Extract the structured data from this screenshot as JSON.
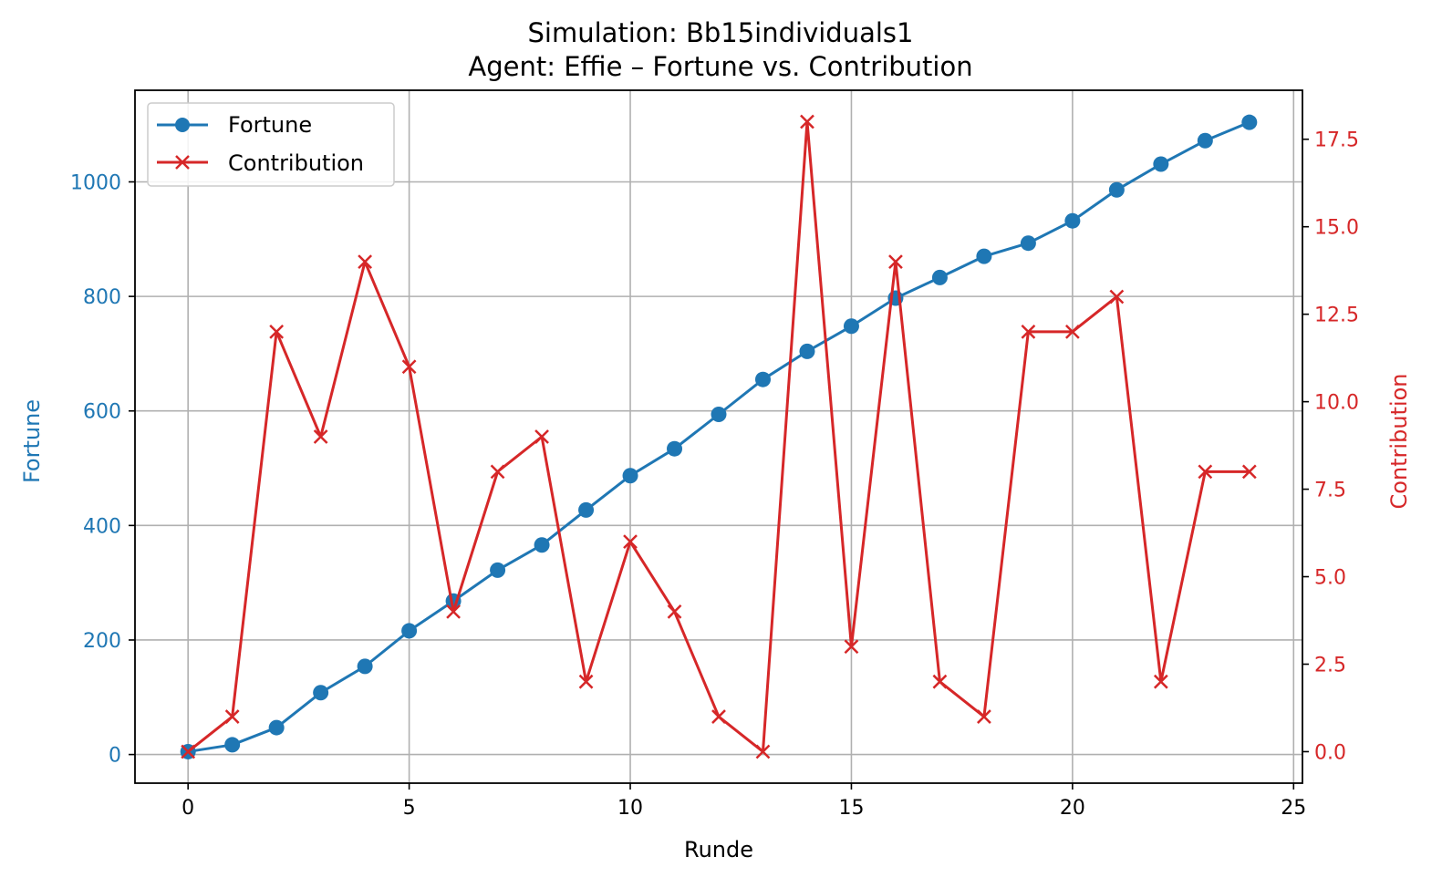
{
  "chart_data": {
    "type": "line",
    "title": "Simulation: Bb15individuals1",
    "subtitle": "Agent: Effie – Fortune vs. Contribution",
    "xlabel": "Runde",
    "ylabel": "Fortune",
    "ylabel_right": "Contribution",
    "xlim": [
      -1.2,
      25.2
    ],
    "ylim": [
      -50,
      1160
    ],
    "ylim_right": [
      -0.9,
      18.9
    ],
    "x_ticks": [
      0,
      5,
      10,
      15,
      20,
      25
    ],
    "y_ticks": [
      0,
      200,
      400,
      600,
      800,
      1000
    ],
    "y_ticks_right": [
      "0.0",
      "2.5",
      "5.0",
      "7.5",
      "10.0",
      "12.5",
      "15.0",
      "17.5"
    ],
    "grid": true,
    "legend_position": "top-left",
    "x": [
      0,
      1,
      2,
      3,
      4,
      5,
      6,
      7,
      8,
      9,
      10,
      11,
      12,
      13,
      14,
      15,
      16,
      17,
      18,
      19,
      20,
      21,
      22,
      23,
      24
    ],
    "series": [
      {
        "name": "Fortune",
        "axis": "left",
        "marker": "circle",
        "color": "#1f77b4",
        "values": [
          5,
          17,
          47,
          108,
          154,
          216,
          268,
          322,
          366,
          427,
          487,
          534,
          594,
          655,
          704,
          748,
          797,
          833,
          870,
          893,
          932,
          986,
          1031,
          1072,
          1104
        ]
      },
      {
        "name": "Contribution",
        "axis": "right",
        "marker": "x",
        "color": "#d62728",
        "values": [
          0,
          1,
          12,
          9,
          14,
          11,
          4,
          8,
          9,
          2,
          6,
          4,
          1,
          0,
          18,
          3,
          14,
          2,
          1,
          12,
          12,
          13,
          2,
          8,
          8
        ]
      }
    ]
  }
}
